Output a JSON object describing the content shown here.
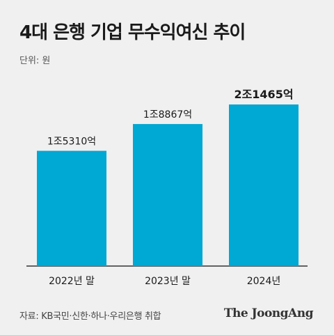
{
  "title": "4대 은행 기업 무수익여신 추이",
  "unit_label": "단위: 원",
  "source": "자료: KB국민·신한·하나·우리은행 취합",
  "brand": "The JoongAng",
  "colors": {
    "bar": "#00a8d4",
    "axis": "#333333",
    "background": "#f0f0f0"
  },
  "chart_data": {
    "type": "bar",
    "categories": [
      "2022년 말",
      "2023년 말",
      "2024년"
    ],
    "values": [
      15310,
      18867,
      21465
    ],
    "value_labels": [
      "1조5310억",
      "1조8867억",
      "2조1465억"
    ],
    "highlight_index": 2,
    "ylim": [
      0,
      21465
    ],
    "grid": false,
    "legend": "none"
  }
}
